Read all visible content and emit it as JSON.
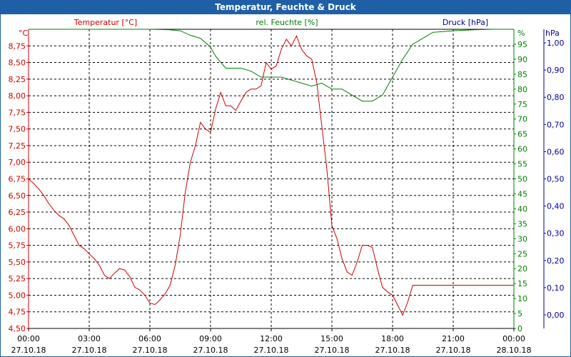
{
  "window": {
    "title": "Temperatur, Feuchte & Druck"
  },
  "colors": {
    "temperature": "#cc0000",
    "humidity": "#008000",
    "pressure": "#000099",
    "titlebar": "#1f5fa6",
    "grid": "#000000"
  },
  "chart_data": {
    "type": "line",
    "title": "Temperatur, Feuchte & Druck",
    "grid": true,
    "x_axis": {
      "ticks": [
        {
          "time": "00:00",
          "date": "27.10.18"
        },
        {
          "time": "03:00",
          "date": "27.10.18"
        },
        {
          "time": "06:00",
          "date": "27.10.18"
        },
        {
          "time": "09:00",
          "date": "27.10.18"
        },
        {
          "time": "12:00",
          "date": "27.10.18"
        },
        {
          "time": "15:00",
          "date": "27.10.18"
        },
        {
          "time": "18:00",
          "date": "27.10.18"
        },
        {
          "time": "21:00",
          "date": "27.10.18"
        },
        {
          "time": "00:00",
          "date": "28.10.18"
        }
      ],
      "range_hours": [
        0,
        24
      ]
    },
    "y_left": {
      "unit": "°C",
      "range": [
        4.5,
        9.0
      ],
      "ticks": [
        "4,50",
        "4,75",
        "5,00",
        "5,25",
        "5,50",
        "5,75",
        "6,00",
        "6,25",
        "6,50",
        "6,75",
        "7,00",
        "7,25",
        "7,50",
        "7,75",
        "8,00",
        "8,25",
        "8,50",
        "8,75"
      ]
    },
    "y_right_humidity": {
      "unit": "%",
      "range": [
        0,
        100
      ],
      "ticks": [
        "0",
        "5",
        "10",
        "15",
        "20",
        "25",
        "30",
        "35",
        "40",
        "45",
        "50",
        "55",
        "60",
        "65",
        "70",
        "75",
        "80",
        "85",
        "90",
        "95"
      ]
    },
    "y_right_pressure": {
      "unit": "hPa",
      "range": [
        -0.05,
        1.05
      ],
      "ticks": [
        "0,00",
        "0,10",
        "0,20",
        "0,30",
        "0,40",
        "0,50",
        "0,60",
        "0,70",
        "0,80",
        "0,90",
        "1,00"
      ]
    },
    "series": [
      {
        "name": "Temperatur [°C]",
        "axis": "left",
        "x": [
          0,
          0.25,
          0.5,
          0.75,
          1.0,
          1.25,
          1.5,
          1.75,
          2.0,
          2.25,
          2.5,
          2.75,
          3.0,
          3.25,
          3.5,
          3.75,
          4.0,
          4.25,
          4.5,
          4.75,
          5.0,
          5.25,
          5.5,
          5.75,
          6.0,
          6.25,
          6.5,
          6.75,
          7.0,
          7.25,
          7.5,
          7.75,
          8.0,
          8.25,
          8.5,
          8.75,
          9.0,
          9.25,
          9.5,
          9.75,
          10.0,
          10.25,
          10.5,
          10.75,
          11.0,
          11.25,
          11.5,
          11.75,
          12.0,
          12.25,
          12.5,
          12.75,
          13.0,
          13.25,
          13.5,
          13.75,
          14.0,
          14.25,
          14.5,
          14.75,
          15.0,
          15.25,
          15.5,
          15.75,
          16.0,
          16.25,
          16.5,
          16.75,
          17.0,
          17.25,
          17.5,
          17.75,
          18.0,
          18.25,
          18.5,
          18.75,
          19.0,
          19.25,
          19.5,
          19.75,
          20.0,
          20.25,
          20.5,
          20.75,
          21.0,
          21.25,
          21.5,
          21.75,
          22.0,
          22.25,
          22.5,
          22.75,
          23.0,
          23.25,
          23.5,
          23.75,
          24.0
        ],
        "values": [
          6.75,
          6.68,
          6.6,
          6.5,
          6.38,
          6.28,
          6.2,
          6.15,
          6.05,
          5.9,
          5.75,
          5.7,
          5.62,
          5.55,
          5.45,
          5.3,
          5.25,
          5.33,
          5.4,
          5.38,
          5.28,
          5.12,
          5.08,
          5.0,
          4.88,
          4.86,
          4.93,
          5.02,
          5.15,
          5.45,
          5.9,
          6.55,
          7.0,
          7.25,
          7.6,
          7.5,
          7.45,
          7.8,
          8.05,
          7.85,
          7.85,
          7.78,
          7.92,
          8.05,
          8.1,
          8.1,
          8.15,
          8.5,
          8.4,
          8.45,
          8.7,
          8.85,
          8.75,
          8.9,
          8.7,
          8.6,
          8.55,
          8.2,
          7.55,
          6.9,
          6.05,
          5.85,
          5.55,
          5.35,
          5.3,
          5.5,
          5.75,
          5.75,
          5.72,
          5.4,
          5.12,
          5.05,
          5.0,
          4.85,
          4.7,
          4.9,
          5.15,
          5.15,
          5.15,
          5.15,
          5.15,
          5.15,
          5.15,
          5.15,
          5.15,
          5.15,
          5.15,
          5.15,
          5.15,
          5.15,
          5.15,
          5.15,
          5.15,
          5.15,
          5.15,
          5.15,
          5.15
        ]
      },
      {
        "name": "rel. Feuchte [%]",
        "axis": "right_humidity",
        "x": [
          0,
          1,
          2,
          3,
          4,
          5,
          6,
          7,
          7.5,
          8.0,
          8.5,
          9.0,
          9.25,
          9.5,
          9.75,
          10.0,
          10.5,
          11.0,
          11.5,
          12.0,
          12.5,
          13.0,
          13.5,
          14.0,
          14.5,
          15.0,
          15.5,
          16.0,
          16.5,
          17.0,
          17.5,
          18.0,
          18.5,
          19.0,
          19.5,
          20.0,
          21.0,
          22.0,
          23.0,
          24.0
        ],
        "values": [
          100,
          100,
          100,
          100,
          100,
          100,
          100,
          99.8,
          99.5,
          98,
          97,
          94,
          91,
          89,
          87,
          87,
          87,
          86,
          84,
          84,
          84,
          83,
          82,
          81,
          82,
          80,
          80,
          78,
          76,
          76,
          78,
          84,
          90,
          95,
          97,
          99,
          99.5,
          99.8,
          100,
          100
        ]
      },
      {
        "name": "Druck [hPa]",
        "axis": "right_pressure",
        "x": [],
        "values": []
      }
    ]
  }
}
